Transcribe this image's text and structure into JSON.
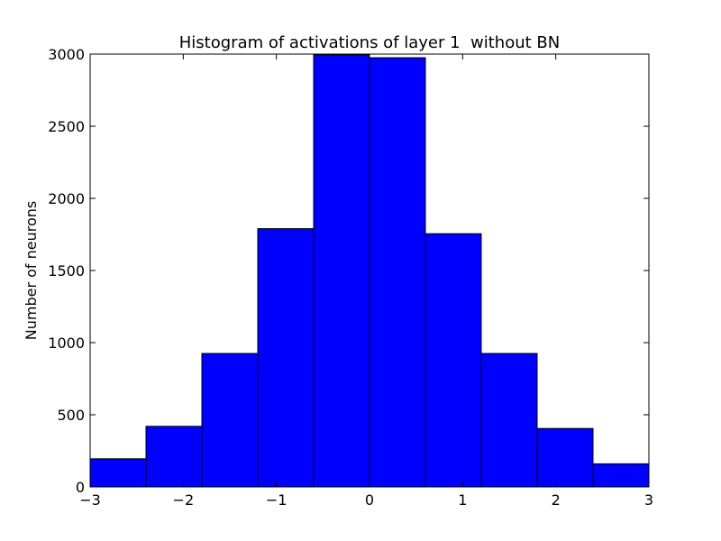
{
  "chart_data": {
    "type": "histogram",
    "title": "Histogram of activations of layer 1  without BN",
    "ylabel": "Number of neurons",
    "bins": [
      -3,
      -2.4,
      -1.8,
      -1.2,
      -0.6,
      0,
      0.6,
      1.2,
      1.8,
      2.4,
      3
    ],
    "counts": [
      195,
      420,
      925,
      1790,
      2995,
      2975,
      1755,
      925,
      405,
      160
    ],
    "color": "#0000ff",
    "xlim": [
      -3,
      3
    ],
    "xticks": [
      {
        "value": -3,
        "label": "−3"
      },
      {
        "value": -2,
        "label": "−2"
      },
      {
        "value": -1,
        "label": "−1"
      },
      0,
      1,
      2,
      3
    ],
    "ylim": [
      0,
      3000
    ],
    "yticks": [
      0,
      500,
      1000,
      1500,
      2000,
      2500,
      3000
    ],
    "grid": false
  }
}
